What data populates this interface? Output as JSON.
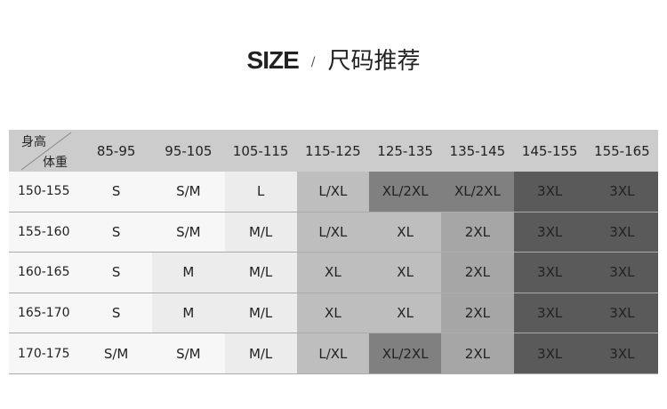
{
  "title": {
    "en": "SIZE",
    "separator": "/",
    "cn": "尺码推荐"
  },
  "corner": {
    "height_label": "身高",
    "weight_label": "体重"
  },
  "colors": {
    "header": "#cccccc",
    "s1": "#f7f7f7",
    "s2": "#ececec",
    "s3": "#bebebe",
    "s4": "#a6a6a6",
    "s5": "#808080",
    "s6": "#5a5a5a"
  },
  "columns": [
    "85-95",
    "95-105",
    "105-115",
    "115-125",
    "125-135",
    "135-145",
    "145-155",
    "155-165"
  ],
  "rows": [
    {
      "label": "150-155",
      "cells": [
        [
          "S",
          "s1"
        ],
        [
          "S/M",
          "s1"
        ],
        [
          "L",
          "s2"
        ],
        [
          "L/XL",
          "s3"
        ],
        [
          "XL/2XL",
          "s5"
        ],
        [
          "XL/2XL",
          "s5"
        ],
        [
          "3XL",
          "s6"
        ],
        [
          "3XL",
          "s6"
        ]
      ]
    },
    {
      "label": "155-160",
      "cells": [
        [
          "S",
          "s1"
        ],
        [
          "S/M",
          "s1"
        ],
        [
          "M/L",
          "s2"
        ],
        [
          "L/XL",
          "s3"
        ],
        [
          "XL",
          "s3"
        ],
        [
          "2XL",
          "s4"
        ],
        [
          "3XL",
          "s6"
        ],
        [
          "3XL",
          "s6"
        ]
      ]
    },
    {
      "label": "160-165",
      "cells": [
        [
          "S",
          "s1"
        ],
        [
          "M",
          "s2"
        ],
        [
          "M/L",
          "s2"
        ],
        [
          "XL",
          "s3"
        ],
        [
          "XL",
          "s3"
        ],
        [
          "2XL",
          "s4"
        ],
        [
          "3XL",
          "s6"
        ],
        [
          "3XL",
          "s6"
        ]
      ]
    },
    {
      "label": "165-170",
      "cells": [
        [
          "S",
          "s1"
        ],
        [
          "M",
          "s2"
        ],
        [
          "M/L",
          "s2"
        ],
        [
          "XL",
          "s3"
        ],
        [
          "XL",
          "s3"
        ],
        [
          "2XL",
          "s4"
        ],
        [
          "3XL",
          "s6"
        ],
        [
          "3XL",
          "s6"
        ]
      ]
    },
    {
      "label": "170-175",
      "cells": [
        [
          "S/M",
          "s1"
        ],
        [
          "S/M",
          "s1"
        ],
        [
          "M/L",
          "s2"
        ],
        [
          "L/XL",
          "s3"
        ],
        [
          "XL/2XL",
          "s5"
        ],
        [
          "2XL",
          "s4"
        ],
        [
          "3XL",
          "s6"
        ],
        [
          "3XL",
          "s6"
        ]
      ]
    }
  ]
}
